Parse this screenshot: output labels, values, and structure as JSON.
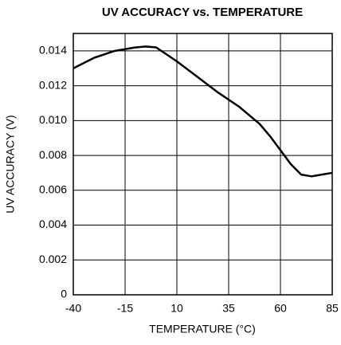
{
  "chart_data": {
    "type": "line",
    "title": "UV ACCURACY vs. TEMPERATURE",
    "xlabel": "TEMPERATURE (°C)",
    "ylabel": "UV ACCURACY (V)",
    "x": [
      -40,
      -30,
      -20,
      -10,
      -5,
      0,
      10,
      20,
      30,
      40,
      50,
      55,
      60,
      65,
      70,
      75,
      80,
      85
    ],
    "series": [
      {
        "color": "#000000",
        "values": [
          0.013,
          0.0136,
          0.014,
          0.0142,
          0.01425,
          0.0142,
          0.0134,
          0.0125,
          0.0116,
          0.0108,
          0.0098,
          0.0091,
          0.0083,
          0.0075,
          0.0069,
          0.0068,
          0.0069,
          0.007
        ]
      }
    ],
    "xlim": [
      -40,
      85
    ],
    "xticks": [
      -40,
      -15,
      10,
      35,
      60,
      85
    ],
    "ylim": [
      0,
      0.015
    ],
    "yticks": [
      0,
      0.002,
      0.004,
      0.006,
      0.008,
      {
        "value": 0.01,
        "label": "0.010"
      },
      0.012,
      0.014
    ],
    "grid": true
  }
}
